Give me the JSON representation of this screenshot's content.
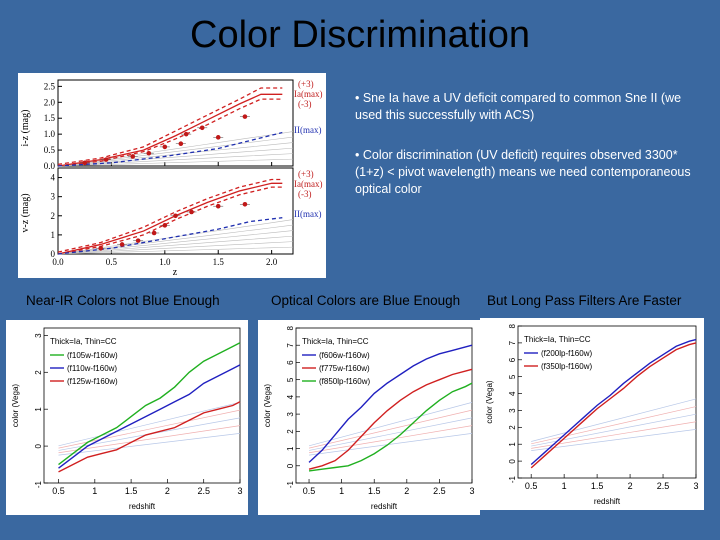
{
  "slide": {
    "title": "Color Discrimination",
    "bullets": [
      "• Sne Ia have a UV deficit compared to common Sne II  (we used this successfully with ACS)",
      "• Color discrimination (UV deficit) requires observed 3300*(1+z) < pivot wavelength) means we need contemporaneous optical color"
    ],
    "captions": [
      "Near-IR Colors not Blue Enough",
      "Optical Colors are Blue Enough",
      "But Long Pass Filters Are Faster"
    ]
  },
  "top_figure": {
    "upper_ylabel": "i-z (mag)",
    "lower_ylabel": "v-z (mag)",
    "xlabel": "z",
    "upper_labels": [
      "(+3)",
      "Ia(max)",
      "(-3)",
      "II(max)"
    ],
    "lower_labels": [
      "(+3)",
      "Ia(max)",
      "(-3)",
      "II(max)"
    ],
    "chart_data": [
      {
        "type": "line",
        "ylabel": "i-z (mag)",
        "xlabel": "z",
        "xlim": [
          0.0,
          2.2
        ],
        "ylim": [
          0.0,
          2.7
        ],
        "x_ticks": [
          "0.0",
          "0.5",
          "1.0",
          "1.5",
          "2.0"
        ],
        "y_ticks": [
          "0.0",
          "0.5",
          "1.0",
          "1.5",
          "2.0",
          "2.5"
        ],
        "series": [
          {
            "name": "(+3)",
            "color": "#d02020",
            "dash": true,
            "x": [
              0,
              0.4,
              0.8,
              1.1,
              1.4,
              1.7,
              1.9,
              2.1
            ],
            "y": [
              0.05,
              0.25,
              0.6,
              1.1,
              1.6,
              2.1,
              2.45,
              2.45
            ]
          },
          {
            "name": "Ia(max)",
            "color": "#d02020",
            "dash": false,
            "x": [
              0,
              0.4,
              0.8,
              1.1,
              1.4,
              1.7,
              1.9,
              2.1
            ],
            "y": [
              0.0,
              0.2,
              0.5,
              0.95,
              1.45,
              1.95,
              2.25,
              2.25
            ]
          },
          {
            "name": "(-3)",
            "color": "#d02020",
            "dash": true,
            "x": [
              0,
              0.4,
              0.8,
              1.1,
              1.4,
              1.7,
              1.9,
              2.1
            ],
            "y": [
              0.0,
              0.15,
              0.45,
              0.85,
              1.3,
              1.8,
              2.1,
              2.1
            ]
          },
          {
            "name": "II(max)",
            "color": "#2030b0",
            "dash": true,
            "x": [
              0,
              0.5,
              1.0,
              1.5,
              1.8,
              2.1
            ],
            "y": [
              0.0,
              0.1,
              0.3,
              0.55,
              0.8,
              1.05
            ]
          }
        ],
        "points": {
          "x": [
            0.25,
            0.45,
            0.7,
            0.85,
            1.0,
            1.15,
            1.2,
            1.35,
            1.5,
            1.75
          ],
          "y": [
            0.1,
            0.2,
            0.3,
            0.4,
            0.6,
            0.7,
            1.0,
            1.2,
            0.9,
            1.55
          ]
        }
      },
      {
        "type": "line",
        "ylabel": "v-z (mag)",
        "xlabel": "z",
        "xlim": [
          0.0,
          2.2
        ],
        "ylim": [
          0.0,
          4.5
        ],
        "x_ticks": [
          "0.0",
          "0.5",
          "1.0",
          "1.5",
          "2.0"
        ],
        "y_ticks": [
          "0",
          "1",
          "2",
          "3",
          "4"
        ],
        "series": [
          {
            "name": "(+3)",
            "color": "#d02020",
            "dash": true,
            "x": [
              0,
              0.4,
              0.8,
              1.1,
              1.4,
              1.7,
              2.0,
              2.1
            ],
            "y": [
              0.1,
              0.6,
              1.4,
              2.2,
              2.9,
              3.5,
              3.9,
              3.9
            ]
          },
          {
            "name": "Ia(max)",
            "color": "#d02020",
            "dash": false,
            "x": [
              0,
              0.4,
              0.8,
              1.1,
              1.4,
              1.7,
              2.0,
              2.1
            ],
            "y": [
              0.0,
              0.5,
              1.2,
              2.0,
              2.7,
              3.3,
              3.7,
              3.7
            ]
          },
          {
            "name": "(-3)",
            "color": "#d02020",
            "dash": true,
            "x": [
              0,
              0.4,
              0.8,
              1.1,
              1.4,
              1.7,
              2.0,
              2.1
            ],
            "y": [
              0.0,
              0.4,
              1.0,
              1.8,
              2.5,
              3.1,
              3.5,
              3.5
            ]
          },
          {
            "name": "II(max)",
            "color": "#2030b0",
            "dash": true,
            "x": [
              0,
              0.5,
              1.0,
              1.5,
              1.8,
              2.1
            ],
            "y": [
              0.0,
              0.3,
              0.8,
              1.3,
              1.7,
              1.9
            ]
          }
        ],
        "points": {
          "x": [
            0.4,
            0.6,
            0.75,
            0.9,
            1.0,
            1.1,
            1.25,
            1.5,
            1.75
          ],
          "y": [
            0.3,
            0.5,
            0.7,
            1.1,
            1.5,
            2.0,
            2.2,
            2.5,
            2.6
          ]
        }
      }
    ]
  },
  "bottom_charts": [
    {
      "type": "line",
      "ylabel": "color  (Vega)",
      "xlabel": "redshift",
      "xlim": [
        0.3,
        3.0
      ],
      "ylim": [
        -1,
        3.2
      ],
      "x_ticks": [
        "0.5",
        "1",
        "1.5",
        "2",
        "2.5",
        "3"
      ],
      "y_ticks": [
        "-1",
        "0",
        "1",
        "2",
        "3"
      ],
      "legend_note": "Thick=Ia, Thin=CC",
      "legend": [
        "(f105w-f160w)",
        "(f110w-f160w)",
        "(f125w-f160w)"
      ],
      "series": [
        {
          "name": "(f105w-f160w)",
          "color": "#20b020",
          "x": [
            0.5,
            0.7,
            0.9,
            1.1,
            1.3,
            1.5,
            1.7,
            1.9,
            2.1,
            2.3,
            2.5,
            2.7,
            2.9,
            3.0
          ],
          "y": [
            -0.5,
            -0.2,
            0.1,
            0.3,
            0.5,
            0.8,
            1.1,
            1.3,
            1.6,
            2.0,
            2.3,
            2.5,
            2.7,
            2.8
          ]
        },
        {
          "name": "(f110w-f160w)",
          "color": "#2020c0",
          "x": [
            0.5,
            0.7,
            0.9,
            1.1,
            1.3,
            1.5,
            1.7,
            1.9,
            2.1,
            2.3,
            2.5,
            2.7,
            2.9,
            3.0
          ],
          "y": [
            -0.6,
            -0.3,
            0.0,
            0.2,
            0.4,
            0.6,
            0.8,
            1.0,
            1.2,
            1.4,
            1.7,
            1.9,
            2.1,
            2.2
          ]
        },
        {
          "name": "(f125w-f160w)",
          "color": "#d02020",
          "x": [
            0.5,
            0.7,
            0.9,
            1.1,
            1.3,
            1.5,
            1.7,
            1.9,
            2.1,
            2.3,
            2.5,
            2.7,
            2.9,
            3.0
          ],
          "y": [
            -0.7,
            -0.5,
            -0.3,
            -0.2,
            -0.1,
            0.1,
            0.3,
            0.4,
            0.5,
            0.7,
            0.9,
            1.0,
            1.1,
            1.2
          ]
        }
      ]
    },
    {
      "type": "line",
      "ylabel": "color  (Vega)",
      "xlabel": "redshift",
      "xlim": [
        0.3,
        3.0
      ],
      "ylim": [
        -1,
        8
      ],
      "x_ticks": [
        "0.5",
        "1",
        "1.5",
        "2",
        "2.5",
        "3"
      ],
      "y_ticks": [
        "-1",
        "0",
        "1",
        "2",
        "3",
        "4",
        "5",
        "6",
        "7",
        "8"
      ],
      "legend_note": "Thick=Ia, Thin=CC",
      "legend": [
        "(f606w-f160w)",
        "(f775w-f160w)",
        "(f850lp-f160w)"
      ],
      "series": [
        {
          "name": "(f606w-f160w)",
          "color": "#2020c0",
          "x": [
            0.5,
            0.7,
            0.9,
            1.1,
            1.3,
            1.5,
            1.7,
            1.9,
            2.1,
            2.3,
            2.5,
            2.7,
            2.9,
            3.0
          ],
          "y": [
            0.2,
            0.9,
            1.8,
            2.7,
            3.4,
            4.2,
            4.8,
            5.3,
            5.8,
            6.2,
            6.5,
            6.7,
            6.9,
            7.0
          ]
        },
        {
          "name": "(f775w-f160w)",
          "color": "#d02020",
          "x": [
            0.5,
            0.7,
            0.9,
            1.1,
            1.3,
            1.5,
            1.7,
            1.9,
            2.1,
            2.3,
            2.5,
            2.7,
            2.9,
            3.0
          ],
          "y": [
            -0.2,
            0.0,
            0.3,
            0.9,
            1.7,
            2.5,
            3.2,
            3.8,
            4.3,
            4.7,
            5.0,
            5.3,
            5.5,
            5.6
          ]
        },
        {
          "name": "(f850lp-f160w)",
          "color": "#20b020",
          "x": [
            0.5,
            0.7,
            0.9,
            1.1,
            1.3,
            1.5,
            1.7,
            1.9,
            2.1,
            2.3,
            2.5,
            2.7,
            2.9,
            3.0
          ],
          "y": [
            -0.3,
            -0.2,
            -0.1,
            0.0,
            0.3,
            0.7,
            1.2,
            1.8,
            2.5,
            3.2,
            3.8,
            4.3,
            4.6,
            4.8
          ]
        }
      ]
    },
    {
      "type": "line",
      "ylabel": "color  (Vega)",
      "xlabel": "redshift",
      "xlim": [
        0.3,
        3.0
      ],
      "ylim": [
        -1,
        8
      ],
      "x_ticks": [
        "0.5",
        "1",
        "1.5",
        "2",
        "2.5",
        "3"
      ],
      "y_ticks": [
        "-1",
        "0",
        "1",
        "2",
        "3",
        "4",
        "5",
        "6",
        "7",
        "8"
      ],
      "legend_note": "Thick=Ia, Thin=CC",
      "legend": [
        "(f200lp-f160w)",
        "(f350lp-f160w)"
      ],
      "series": [
        {
          "name": "(f200lp-f160w)",
          "color": "#2020c0",
          "x": [
            0.5,
            0.7,
            0.9,
            1.1,
            1.3,
            1.5,
            1.7,
            1.9,
            2.1,
            2.3,
            2.5,
            2.7,
            2.9,
            3.0
          ],
          "y": [
            -0.2,
            0.5,
            1.2,
            1.9,
            2.6,
            3.3,
            3.9,
            4.6,
            5.2,
            5.8,
            6.3,
            6.8,
            7.1,
            7.2
          ]
        },
        {
          "name": "(f350lp-f160w)",
          "color": "#d02020",
          "x": [
            0.5,
            0.7,
            0.9,
            1.1,
            1.3,
            1.5,
            1.7,
            1.9,
            2.1,
            2.3,
            2.5,
            2.7,
            2.9,
            3.0
          ],
          "y": [
            -0.4,
            0.3,
            1.0,
            1.7,
            2.4,
            3.1,
            3.7,
            4.3,
            5.0,
            5.6,
            6.1,
            6.6,
            6.9,
            7.0
          ]
        }
      ]
    }
  ]
}
